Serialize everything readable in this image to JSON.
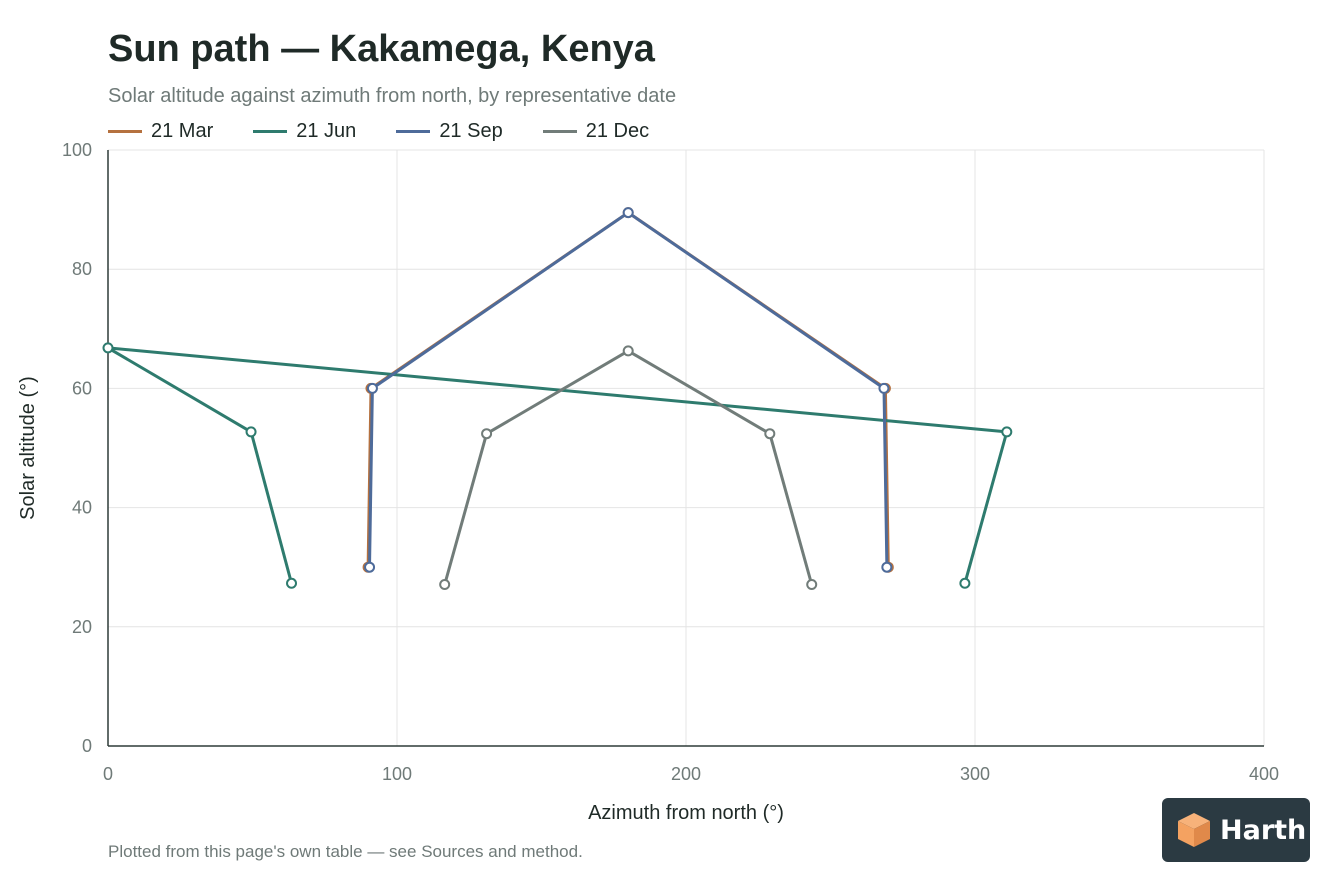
{
  "title": "Sun path — Kakamega, Kenya",
  "subtitle": "Solar altitude against azimuth from north, by representative date",
  "footnote": "Plotted from this page's own table — see Sources and method.",
  "logo": {
    "text": "Harth",
    "icon": "cube-icon",
    "background": "#2b3a42",
    "accent": "#f4a261"
  },
  "chart_data": {
    "type": "line",
    "title": "Sun path — Kakamega, Kenya",
    "subtitle": "Solar altitude against azimuth from north, by representative date",
    "xlabel": "Azimuth from north (°)",
    "ylabel": "Solar altitude (°)",
    "xlim": [
      0,
      400
    ],
    "ylim": [
      0,
      100
    ],
    "xticks": [
      0,
      100,
      200,
      300,
      400
    ],
    "yticks": [
      0,
      20,
      40,
      60,
      80,
      100
    ],
    "grid": true,
    "legend_position": "top-left",
    "series": [
      {
        "name": "21 Mar",
        "color": "#b5713f",
        "x": [
          90,
          91,
          180,
          269,
          270
        ],
        "y": [
          30,
          60,
          89.5,
          60,
          30
        ]
      },
      {
        "name": "21 Jun",
        "color": "#2e7b6e",
        "x": [
          63.5,
          49.5,
          0,
          311,
          296.5
        ],
        "y": [
          27.3,
          52.7,
          66.8,
          52.7,
          27.3
        ]
      },
      {
        "name": "21 Sep",
        "color": "#4e6b9a",
        "x": [
          90.5,
          91.5,
          180,
          268.5,
          269.5
        ],
        "y": [
          30,
          60,
          89.5,
          60,
          30
        ]
      },
      {
        "name": "21 Dec",
        "color": "#717c79",
        "x": [
          116.5,
          131,
          180,
          229,
          243.5
        ],
        "y": [
          27.1,
          52.4,
          66.3,
          52.4,
          27.1
        ]
      }
    ]
  }
}
